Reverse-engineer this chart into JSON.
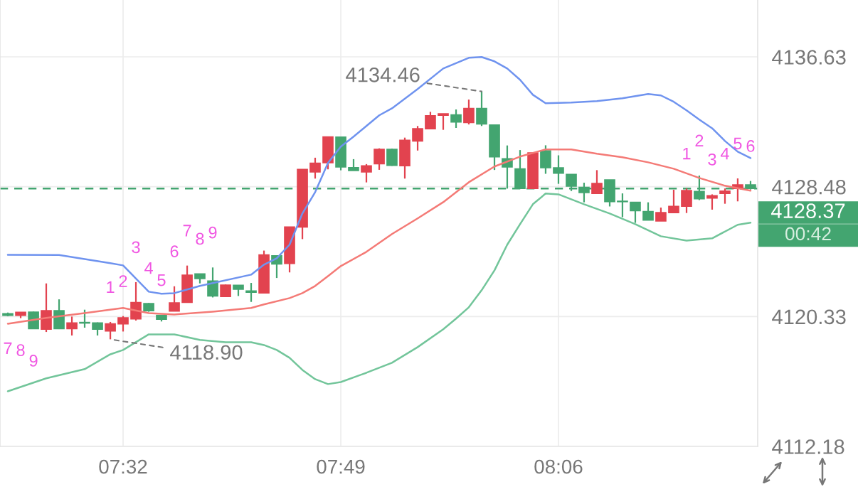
{
  "chart_data": {
    "type": "candlestick",
    "x": [
      7.3833,
      7.4,
      7.4167,
      7.4333,
      7.45,
      7.4667,
      7.4833,
      7.5,
      7.5167,
      7.5333,
      7.55,
      7.5667,
      7.5833,
      7.6,
      7.6167,
      7.6333,
      7.65,
      7.6667,
      7.6833,
      7.7,
      7.7167,
      7.7333,
      7.75,
      7.7667,
      7.7833,
      7.8,
      7.8167,
      7.8333,
      7.85,
      7.8667,
      7.8833,
      7.9,
      7.9167,
      7.9333,
      7.95,
      7.9667,
      7.9833,
      8.0,
      8.0167,
      8.0333,
      8.05,
      8.0667,
      8.0833,
      8.1,
      8.1167,
      8.1333,
      8.15,
      8.1667,
      8.1833,
      8.2,
      8.2167,
      8.2333,
      8.25,
      8.2667,
      8.2833,
      8.3,
      8.3167,
      8.3333,
      8.35
    ],
    "ohlc": [
      [
        4120.51,
        4120.58,
        4120.35,
        4120.4
      ],
      [
        4120.41,
        4120.6,
        4120.23,
        4120.6
      ],
      [
        4120.61,
        4120.64,
        4119.57,
        4119.57
      ],
      [
        4119.54,
        4122.41,
        4119.36,
        4120.7
      ],
      [
        4120.7,
        4121.41,
        4119.54,
        4119.57
      ],
      [
        4119.57,
        4120.33,
        4119.14,
        4119.93
      ],
      [
        4119.96,
        4120.76,
        4119.63,
        4119.92
      ],
      [
        4119.93,
        4119.96,
        4119.14,
        4119.54
      ],
      [
        4119.42,
        4119.99,
        4118.9,
        4119.87
      ],
      [
        4119.87,
        4120.36,
        4119.39,
        4120.25
      ],
      [
        4120.18,
        4122.49,
        4120.08,
        4121.21
      ],
      [
        4121.15,
        4121.18,
        4120.63,
        4120.69
      ],
      [
        4120.41,
        4120.42,
        4120.02,
        4120.16
      ],
      [
        4120.67,
        4122.23,
        4120.67,
        4121.19
      ],
      [
        4121.22,
        4123.53,
        4121.22,
        4122.93
      ],
      [
        4123.01,
        4123.02,
        4122.41,
        4122.71
      ],
      [
        4122.56,
        4123.41,
        4121.53,
        4121.62
      ],
      [
        4121.59,
        4122.34,
        4121.57,
        4122.31
      ],
      [
        4122.29,
        4122.29,
        4121.62,
        4122.04
      ],
      [
        4121.94,
        4122.44,
        4121.25,
        4121.85
      ],
      [
        4121.81,
        4124.47,
        4121.81,
        4124.2
      ],
      [
        4124.15,
        4124.15,
        4122.75,
        4123.63
      ],
      [
        4123.66,
        4125.95,
        4123.1,
        4125.95
      ],
      [
        4125.95,
        4129.57,
        4125.19,
        4129.57
      ],
      [
        4129.41,
        4130.3,
        4128.99,
        4129.96
      ],
      [
        4129.99,
        4131.61,
        4129.57,
        4131.61
      ],
      [
        4131.6,
        4131.61,
        4129.51,
        4129.72
      ],
      [
        4129.68,
        4130.21,
        4129.5,
        4129.5
      ],
      [
        4129.41,
        4129.9,
        4128.75,
        4129.79
      ],
      [
        4129.92,
        4130.89,
        4129.54,
        4130.83
      ],
      [
        4130.83,
        4130.87,
        4129.79,
        4129.82
      ],
      [
        4129.8,
        4131.56,
        4128.99,
        4131.4
      ],
      [
        4131.35,
        4132.29,
        4130.75,
        4132.12
      ],
      [
        4132.12,
        4133.18,
        4132.12,
        4132.94
      ],
      [
        4132.97,
        4133.06,
        4132.05,
        4133.06
      ],
      [
        4132.99,
        4133.33,
        4132.17,
        4132.54
      ],
      [
        4132.51,
        4133.95,
        4132.39,
        4133.39
      ],
      [
        4133.39,
        4134.46,
        4132.29,
        4132.42
      ],
      [
        4132.36,
        4132.36,
        4129.53,
        4130.35
      ],
      [
        4130.24,
        4131.07,
        4128.36,
        4129.72
      ],
      [
        4129.6,
        4130.78,
        4128.34,
        4128.37
      ],
      [
        4128.37,
        4130.6,
        4128.37,
        4130.6
      ],
      [
        4130.74,
        4131.08,
        4129.29,
        4129.67
      ],
      [
        4129.67,
        4130.45,
        4128.66,
        4129.33
      ],
      [
        4129.25,
        4129.25,
        4128.21,
        4128.51
      ],
      [
        4128.44,
        4128.73,
        4127.5,
        4128.11
      ],
      [
        4128.06,
        4129.52,
        4128.06,
        4128.69
      ],
      [
        4128.91,
        4128.91,
        4127.24,
        4127.54
      ],
      [
        4127.57,
        4128.06,
        4126.57,
        4127.54
      ],
      [
        4127.5,
        4127.5,
        4126.21,
        4126.98
      ],
      [
        4126.92,
        4127.5,
        4126.38,
        4126.38
      ],
      [
        4126.33,
        4127.17,
        4126.33,
        4126.85
      ],
      [
        4126.85,
        4128.29,
        4126.82,
        4127.25
      ],
      [
        4127.25,
        4128.37,
        4126.83,
        4128.24
      ],
      [
        4128.18,
        4129.18,
        4127.64,
        4127.72
      ],
      [
        4127.77,
        4128.0,
        4127.04,
        4127.92
      ],
      [
        4128.06,
        4128.37,
        4127.41,
        4128.21
      ],
      [
        4128.37,
        4129.0,
        4127.56,
        4128.6
      ],
      [
        4128.6,
        4128.84,
        4128.3,
        4128.37
      ]
    ],
    "colors": [
      "#43a570",
      "#e2434f",
      "#43a570",
      "#e2434f",
      "#43a570",
      "#e2434f",
      "#43a570",
      "#43a570",
      "#e2434f",
      "#e2434f",
      "#e2434f",
      "#43a570",
      "#43a570",
      "#e2434f",
      "#e2434f",
      "#43a570",
      "#43a570",
      "#e2434f",
      "#43a570",
      "#43a570",
      "#e2434f",
      "#43a570",
      "#e2434f",
      "#e2434f",
      "#e2434f",
      "#e2434f",
      "#43a570",
      "#43a570",
      "#e2434f",
      "#e2434f",
      "#43a570",
      "#e2434f",
      "#e2434f",
      "#e2434f",
      "#e2434f",
      "#43a570",
      "#e2434f",
      "#43a570",
      "#43a570",
      "#43a570",
      "#43a570",
      "#e2434f",
      "#43a570",
      "#43a570",
      "#43a570",
      "#43a570",
      "#e2434f",
      "#43a570",
      "#43a570",
      "#43a570",
      "#43a570",
      "#e2434f",
      "#e2434f",
      "#e2434f",
      "#43a570",
      "#e2434f",
      "#e2434f",
      "#e2434f",
      "#43a570"
    ],
    "series": [
      {
        "type": "line",
        "color": "#6f93ef",
        "x": [
          7.3833,
          7.45,
          7.5167,
          7.5333,
          7.5667,
          7.5833,
          7.6,
          7.6333,
          7.7,
          7.7167,
          7.7333,
          7.75,
          7.7667,
          7.7833,
          7.8,
          7.8167,
          7.8333,
          7.85,
          7.8667,
          7.8833,
          7.9167,
          7.95,
          7.9833,
          8.0,
          8.0167,
          8.0333,
          8.05,
          8.0667,
          8.0833,
          8.1167,
          8.15,
          8.1833,
          8.2167,
          8.2333,
          8.25,
          8.2667,
          8.2833,
          8.3,
          8.3167,
          8.3333,
          8.35
        ],
        "values": [
          4124.21,
          4124.19,
          4123.68,
          4123.54,
          4121.89,
          4121.76,
          4121.8,
          4122.25,
          4122.96,
          4123.59,
          4123.99,
          4124.84,
          4126.8,
          4128.14,
          4129.97,
          4131.0,
          4131.62,
          4132.29,
          4132.96,
          4133.4,
          4134.61,
          4135.9,
          4136.57,
          4136.62,
          4136.35,
          4135.9,
          4135.19,
          4134.25,
          4133.72,
          4133.76,
          4133.85,
          4134.03,
          4134.3,
          4134.21,
          4133.81,
          4133.27,
          4132.69,
          4132.15,
          4131.35,
          4130.68,
          4130.28
        ]
      },
      {
        "type": "line",
        "color": "#f47a76",
        "x": [
          7.3833,
          7.4333,
          7.4833,
          7.5333,
          7.5667,
          7.6,
          7.65,
          7.7,
          7.7167,
          7.75,
          7.7667,
          7.7833,
          7.8,
          7.8167,
          7.85,
          7.8833,
          7.9167,
          7.95,
          7.9833,
          8.0167,
          8.05,
          8.0833,
          8.1167,
          8.15,
          8.1833,
          8.2167,
          8.25,
          8.2833,
          8.3167,
          8.35
        ],
        "values": [
          4119.88,
          4120.24,
          4120.55,
          4120.87,
          4120.55,
          4120.46,
          4120.64,
          4120.87,
          4121.09,
          4121.49,
          4121.8,
          4122.25,
          4122.87,
          4123.5,
          4124.39,
          4125.51,
          4126.49,
          4127.51,
          4128.76,
          4129.75,
          4130.37,
          4130.82,
          4130.82,
          4130.55,
          4130.33,
          4130.01,
          4129.61,
          4129.03,
          4128.54,
          4128.23
        ]
      },
      {
        "type": "line",
        "color": "#72c59a",
        "x": [
          7.3833,
          7.4333,
          7.4833,
          7.5167,
          7.5333,
          7.5667,
          7.6,
          7.6333,
          7.6667,
          7.7,
          7.7167,
          7.7333,
          7.75,
          7.7667,
          7.7833,
          7.8,
          7.8167,
          7.85,
          7.8833,
          7.9167,
          7.95,
          7.9667,
          7.9833,
          8.0,
          8.0167,
          8.0333,
          8.05,
          8.0667,
          8.0833,
          8.1,
          8.1333,
          8.1667,
          8.2,
          8.2333,
          8.2667,
          8.3,
          8.3333,
          8.35
        ],
        "values": [
          4115.64,
          4116.45,
          4117.03,
          4117.96,
          4118.23,
          4119.21,
          4119.21,
          4118.86,
          4118.72,
          4118.72,
          4118.54,
          4118.23,
          4117.74,
          4116.98,
          4116.4,
          4116.09,
          4116.22,
          4116.8,
          4117.43,
          4118.41,
          4119.53,
          4120.2,
          4120.91,
          4121.98,
          4123.23,
          4124.84,
          4126.13,
          4127.38,
          4128.05,
          4128.0,
          4127.38,
          4126.8,
          4126.13,
          4125.37,
          4125.1,
          4125.24,
          4126.09,
          4126.22
        ]
      }
    ],
    "xlim": [
      7.3731,
      8.3593
    ],
    "xticks": [
      {
        "value": 7.5333,
        "label": "07:32"
      },
      {
        "value": 7.8167,
        "label": "07:49"
      },
      {
        "value": 8.1,
        "label": "08:06"
      }
    ],
    "ylim": [
      4112.18,
      4140.2
    ],
    "yticks": [
      4112.18,
      4120.33,
      4128.48,
      4136.63
    ],
    "grid": true,
    "ref_lines": [
      {
        "axis": "y",
        "value": 4128.37,
        "label": "4128.37",
        "color": "#43a570",
        "line_style": "dashed"
      }
    ],
    "annotations": [
      {
        "text": "7",
        "x": 7.3833,
        "y": 4120.35
      },
      {
        "text": "8",
        "x": 7.4,
        "y": 4120.23
      },
      {
        "text": "9",
        "x": 7.4167,
        "y": 4119.57
      },
      {
        "text": "1",
        "x": 7.5167,
        "y": 4119.99
      },
      {
        "text": "2",
        "x": 7.5333,
        "y": 4120.36
      },
      {
        "text": "3",
        "x": 7.55,
        "y": 4122.49
      },
      {
        "text": "4",
        "x": 7.5667,
        "y": 4121.18
      },
      {
        "text": "5",
        "x": 7.5833,
        "y": 4120.42
      },
      {
        "text": "6",
        "x": 7.6,
        "y": 4122.23
      },
      {
        "text": "7",
        "x": 7.6167,
        "y": 4123.53
      },
      {
        "text": "8",
        "x": 7.6333,
        "y": 4123.02
      },
      {
        "text": "9",
        "x": 7.65,
        "y": 4123.41
      },
      {
        "text": "1",
        "x": 8.2667,
        "y": 4128.37
      },
      {
        "text": "2",
        "x": 8.2833,
        "y": 4129.18
      },
      {
        "text": "3",
        "x": 8.3,
        "y": 4128.0
      },
      {
        "text": "4",
        "x": 8.3167,
        "y": 4128.37
      },
      {
        "text": "5",
        "x": 8.3333,
        "y": 4129.0
      },
      {
        "text": "6",
        "x": 8.35,
        "y": 4128.84
      },
      {
        "text": "4134.46",
        "x": 8.0,
        "y": 4134.46
      },
      {
        "text": "4118.90",
        "x": 7.5167,
        "y": 4118.9
      },
      "00:42"
    ]
  }
}
